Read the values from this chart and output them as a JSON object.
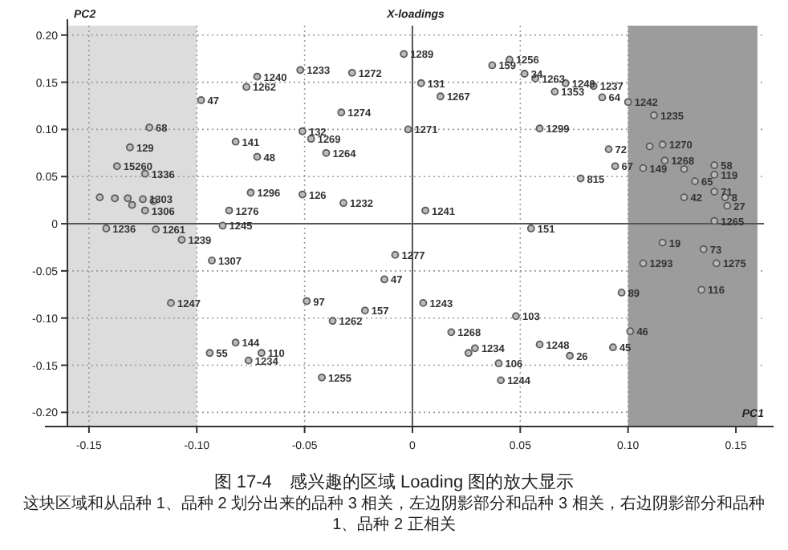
{
  "chart_data": {
    "type": "scatter",
    "title": "X-loadings",
    "xlabel": "PC1",
    "ylabel": "PC2",
    "xlim": [
      -0.16,
      0.163
    ],
    "ylim": [
      -0.215,
      0.21
    ],
    "xticks": [
      {
        "value": -0.15,
        "label": "-0.15"
      },
      {
        "value": -0.1,
        "label": "-0.10"
      },
      {
        "value": -0.05,
        "label": "-0.05"
      },
      0,
      {
        "value": 0.05,
        "label": "0.05"
      },
      {
        "value": 0.1,
        "label": "0.10"
      },
      {
        "value": 0.15,
        "label": "0.15"
      }
    ],
    "yticks": [
      {
        "value": -0.2,
        "label": "-0.20"
      },
      {
        "value": -0.15,
        "label": "-0.15"
      },
      {
        "value": -0.1,
        "label": "-0.10"
      },
      {
        "value": -0.05,
        "label": "-0.05"
      },
      0,
      {
        "value": 0.05,
        "label": "0.05"
      },
      {
        "value": 0.1,
        "label": "0.10"
      },
      {
        "value": 0.15,
        "label": "0.15"
      },
      {
        "value": 0.2,
        "label": "0.20"
      }
    ],
    "grid": true,
    "marker": "circle",
    "bands": [
      {
        "axis": "x",
        "from": -0.16,
        "to": -0.1,
        "color": "#dcdcdc"
      },
      {
        "axis": "x",
        "from": 0.1,
        "to": 0.16,
        "color": "#9c9c9c"
      }
    ],
    "series": [
      {
        "color": "#5a5a5a",
        "x": [
          -0.072,
          -0.077,
          -0.052,
          -0.028,
          -0.098,
          -0.033,
          -0.051,
          -0.047,
          -0.04,
          -0.082,
          -0.072,
          -0.122,
          -0.131,
          -0.137,
          -0.124,
          -0.075,
          -0.051,
          -0.032,
          -0.085,
          -0.145,
          -0.138,
          -0.132,
          -0.125,
          -0.12,
          -0.13,
          -0.124,
          -0.004,
          0.037,
          0.045,
          0.052,
          0.057,
          0.071,
          0.084,
          0.066,
          0.088,
          0.1,
          0.004,
          0.013,
          -0.002,
          0.059,
          0.112,
          0.091,
          0.11,
          0.116,
          0.094,
          0.107,
          0.117,
          0.126,
          0.14,
          0.14,
          0.131,
          0.078,
          0.126,
          0.14,
          0.145,
          0.146,
          0.006,
          0.14,
          0.055,
          0.116,
          0.135,
          0.107,
          0.141,
          0.134,
          0.097,
          -0.008,
          -0.013,
          0.005,
          0.048,
          0.101,
          0.018,
          0.059,
          0.093,
          0.073,
          0.029,
          0.026,
          0.04,
          0.041,
          -0.088,
          -0.142,
          -0.119,
          -0.107,
          -0.093,
          -0.112,
          -0.049,
          -0.022,
          -0.037,
          -0.082,
          -0.094,
          -0.07,
          -0.076,
          -0.042
        ],
        "values": [
          0.156,
          0.145,
          0.163,
          0.16,
          0.131,
          0.118,
          0.098,
          0.09,
          0.075,
          0.087,
          0.071,
          0.102,
          0.081,
          0.061,
          0.053,
          0.033,
          0.031,
          0.022,
          0.014,
          0.028,
          0.027,
          0.027,
          0.026,
          0.024,
          0.02,
          0.014,
          0.18,
          0.168,
          0.174,
          0.159,
          0.154,
          0.149,
          0.146,
          0.14,
          0.134,
          0.129,
          0.149,
          0.135,
          0.1,
          0.101,
          0.115,
          0.079,
          0.082,
          0.084,
          0.061,
          0.059,
          0.067,
          0.058,
          0.062,
          0.052,
          0.045,
          0.048,
          0.028,
          0.034,
          0.028,
          0.019,
          0.014,
          0.003,
          -0.005,
          -0.02,
          -0.027,
          -0.042,
          -0.042,
          -0.07,
          -0.073,
          -0.033,
          -0.059,
          -0.084,
          -0.098,
          -0.114,
          -0.115,
          -0.128,
          -0.131,
          -0.14,
          -0.132,
          -0.137,
          -0.148,
          -0.166,
          -0.002,
          -0.005,
          -0.006,
          -0.017,
          -0.039,
          -0.084,
          -0.082,
          -0.092,
          -0.103,
          -0.126,
          -0.137,
          -0.137,
          -0.145,
          -0.163
        ]
      }
    ],
    "annotations": [
      {
        "text": "1240",
        "x": -0.072,
        "y": 0.156
      },
      {
        "text": "1262",
        "x": -0.077,
        "y": 0.145
      },
      {
        "text": "1233",
        "x": -0.052,
        "y": 0.163
      },
      {
        "text": "1272",
        "x": -0.028,
        "y": 0.16
      },
      {
        "text": "47",
        "x": -0.098,
        "y": 0.131
      },
      {
        "text": "1274",
        "x": -0.033,
        "y": 0.118
      },
      {
        "text": "132",
        "x": -0.051,
        "y": 0.098
      },
      {
        "text": "1269",
        "x": -0.047,
        "y": 0.09
      },
      {
        "text": "1264",
        "x": -0.04,
        "y": 0.075
      },
      {
        "text": "141",
        "x": -0.082,
        "y": 0.087
      },
      {
        "text": "48",
        "x": -0.072,
        "y": 0.071
      },
      {
        "text": "68",
        "x": -0.122,
        "y": 0.102
      },
      {
        "text": "129",
        "x": -0.131,
        "y": 0.081
      },
      {
        "text": "15260",
        "x": -0.137,
        "y": 0.061
      },
      {
        "text": "1336",
        "x": -0.124,
        "y": 0.053
      },
      {
        "text": "1296",
        "x": -0.075,
        "y": 0.033
      },
      {
        "text": "126",
        "x": -0.051,
        "y": 0.031
      },
      {
        "text": "1232",
        "x": -0.032,
        "y": 0.022
      },
      {
        "text": "1276",
        "x": -0.085,
        "y": 0.014
      },
      {
        "text": "1303",
        "x": -0.125,
        "y": 0.026
      },
      {
        "text": "1306",
        "x": -0.124,
        "y": 0.014
      },
      {
        "text": "1289",
        "x": -0.004,
        "y": 0.18
      },
      {
        "text": "159",
        "x": 0.037,
        "y": 0.168
      },
      {
        "text": "1256",
        "x": 0.045,
        "y": 0.174
      },
      {
        "text": "34",
        "x": 0.052,
        "y": 0.159
      },
      {
        "text": "1263",
        "x": 0.057,
        "y": 0.154
      },
      {
        "text": "1249",
        "x": 0.071,
        "y": 0.149
      },
      {
        "text": "1237",
        "x": 0.084,
        "y": 0.146
      },
      {
        "text": "1353",
        "x": 0.066,
        "y": 0.14
      },
      {
        "text": "64",
        "x": 0.088,
        "y": 0.134
      },
      {
        "text": "1242",
        "x": 0.1,
        "y": 0.129
      },
      {
        "text": "131",
        "x": 0.004,
        "y": 0.149
      },
      {
        "text": "1267",
        "x": 0.013,
        "y": 0.135
      },
      {
        "text": "1271",
        "x": -0.002,
        "y": 0.1
      },
      {
        "text": "1299",
        "x": 0.059,
        "y": 0.101
      },
      {
        "text": "1235",
        "x": 0.112,
        "y": 0.115
      },
      {
        "text": "72",
        "x": 0.091,
        "y": 0.079
      },
      {
        "text": "1270",
        "x": 0.116,
        "y": 0.084
      },
      {
        "text": "67",
        "x": 0.094,
        "y": 0.061
      },
      {
        "text": "149",
        "x": 0.107,
        "y": 0.059
      },
      {
        "text": "1268",
        "x": 0.117,
        "y": 0.067
      },
      {
        "text": "58",
        "x": 0.14,
        "y": 0.062
      },
      {
        "text": "119",
        "x": 0.14,
        "y": 0.052
      },
      {
        "text": "65",
        "x": 0.131,
        "y": 0.045
      },
      {
        "text": "815",
        "x": 0.078,
        "y": 0.048
      },
      {
        "text": "42",
        "x": 0.126,
        "y": 0.028
      },
      {
        "text": "71",
        "x": 0.14,
        "y": 0.034
      },
      {
        "text": "8",
        "x": 0.145,
        "y": 0.028
      },
      {
        "text": "27",
        "x": 0.146,
        "y": 0.019
      },
      {
        "text": "1241",
        "x": 0.006,
        "y": 0.014
      },
      {
        "text": "1265",
        "x": 0.14,
        "y": 0.003
      },
      {
        "text": "151",
        "x": 0.055,
        "y": -0.005
      },
      {
        "text": "19",
        "x": 0.116,
        "y": -0.02
      },
      {
        "text": "73",
        "x": 0.135,
        "y": -0.027
      },
      {
        "text": "1293",
        "x": 0.107,
        "y": -0.042
      },
      {
        "text": "1275",
        "x": 0.141,
        "y": -0.042
      },
      {
        "text": "116",
        "x": 0.134,
        "y": -0.07
      },
      {
        "text": "89",
        "x": 0.097,
        "y": -0.073
      },
      {
        "text": "1277",
        "x": -0.008,
        "y": -0.033
      },
      {
        "text": "47",
        "x": -0.013,
        "y": -0.059
      },
      {
        "text": "1243",
        "x": 0.005,
        "y": -0.084
      },
      {
        "text": "103",
        "x": 0.048,
        "y": -0.098
      },
      {
        "text": "46",
        "x": 0.101,
        "y": -0.114
      },
      {
        "text": "1268",
        "x": 0.018,
        "y": -0.115
      },
      {
        "text": "1248",
        "x": 0.059,
        "y": -0.128
      },
      {
        "text": "45",
        "x": 0.093,
        "y": -0.131
      },
      {
        "text": "26",
        "x": 0.073,
        "y": -0.14
      },
      {
        "text": "1234",
        "x": 0.029,
        "y": -0.132
      },
      {
        "text": "106",
        "x": 0.04,
        "y": -0.148
      },
      {
        "text": "1244",
        "x": 0.041,
        "y": -0.166
      },
      {
        "text": "1245",
        "x": -0.088,
        "y": -0.002
      },
      {
        "text": "1236",
        "x": -0.142,
        "y": -0.005
      },
      {
        "text": "1261",
        "x": -0.119,
        "y": -0.006
      },
      {
        "text": "1239",
        "x": -0.107,
        "y": -0.017
      },
      {
        "text": "1307",
        "x": -0.093,
        "y": -0.039
      },
      {
        "text": "1247",
        "x": -0.112,
        "y": -0.084
      },
      {
        "text": "97",
        "x": -0.049,
        "y": -0.082
      },
      {
        "text": "157",
        "x": -0.022,
        "y": -0.092
      },
      {
        "text": "1262",
        "x": -0.037,
        "y": -0.103
      },
      {
        "text": "144",
        "x": -0.082,
        "y": -0.126
      },
      {
        "text": "55",
        "x": -0.094,
        "y": -0.137
      },
      {
        "text": "110",
        "x": -0.07,
        "y": -0.137
      },
      {
        "text": "1234",
        "x": -0.076,
        "y": -0.145
      },
      {
        "text": "1255",
        "x": -0.042,
        "y": -0.163
      },
      "图 17-4　感兴趣的区域 Loading 图的放大显示",
      "这块区域和从品种 1、品种 2 划分出来的品种 3 相关，左边阴影部分和品种 3 相关，右边阴影部分和品种 1、品种 2 正相关"
    ]
  }
}
